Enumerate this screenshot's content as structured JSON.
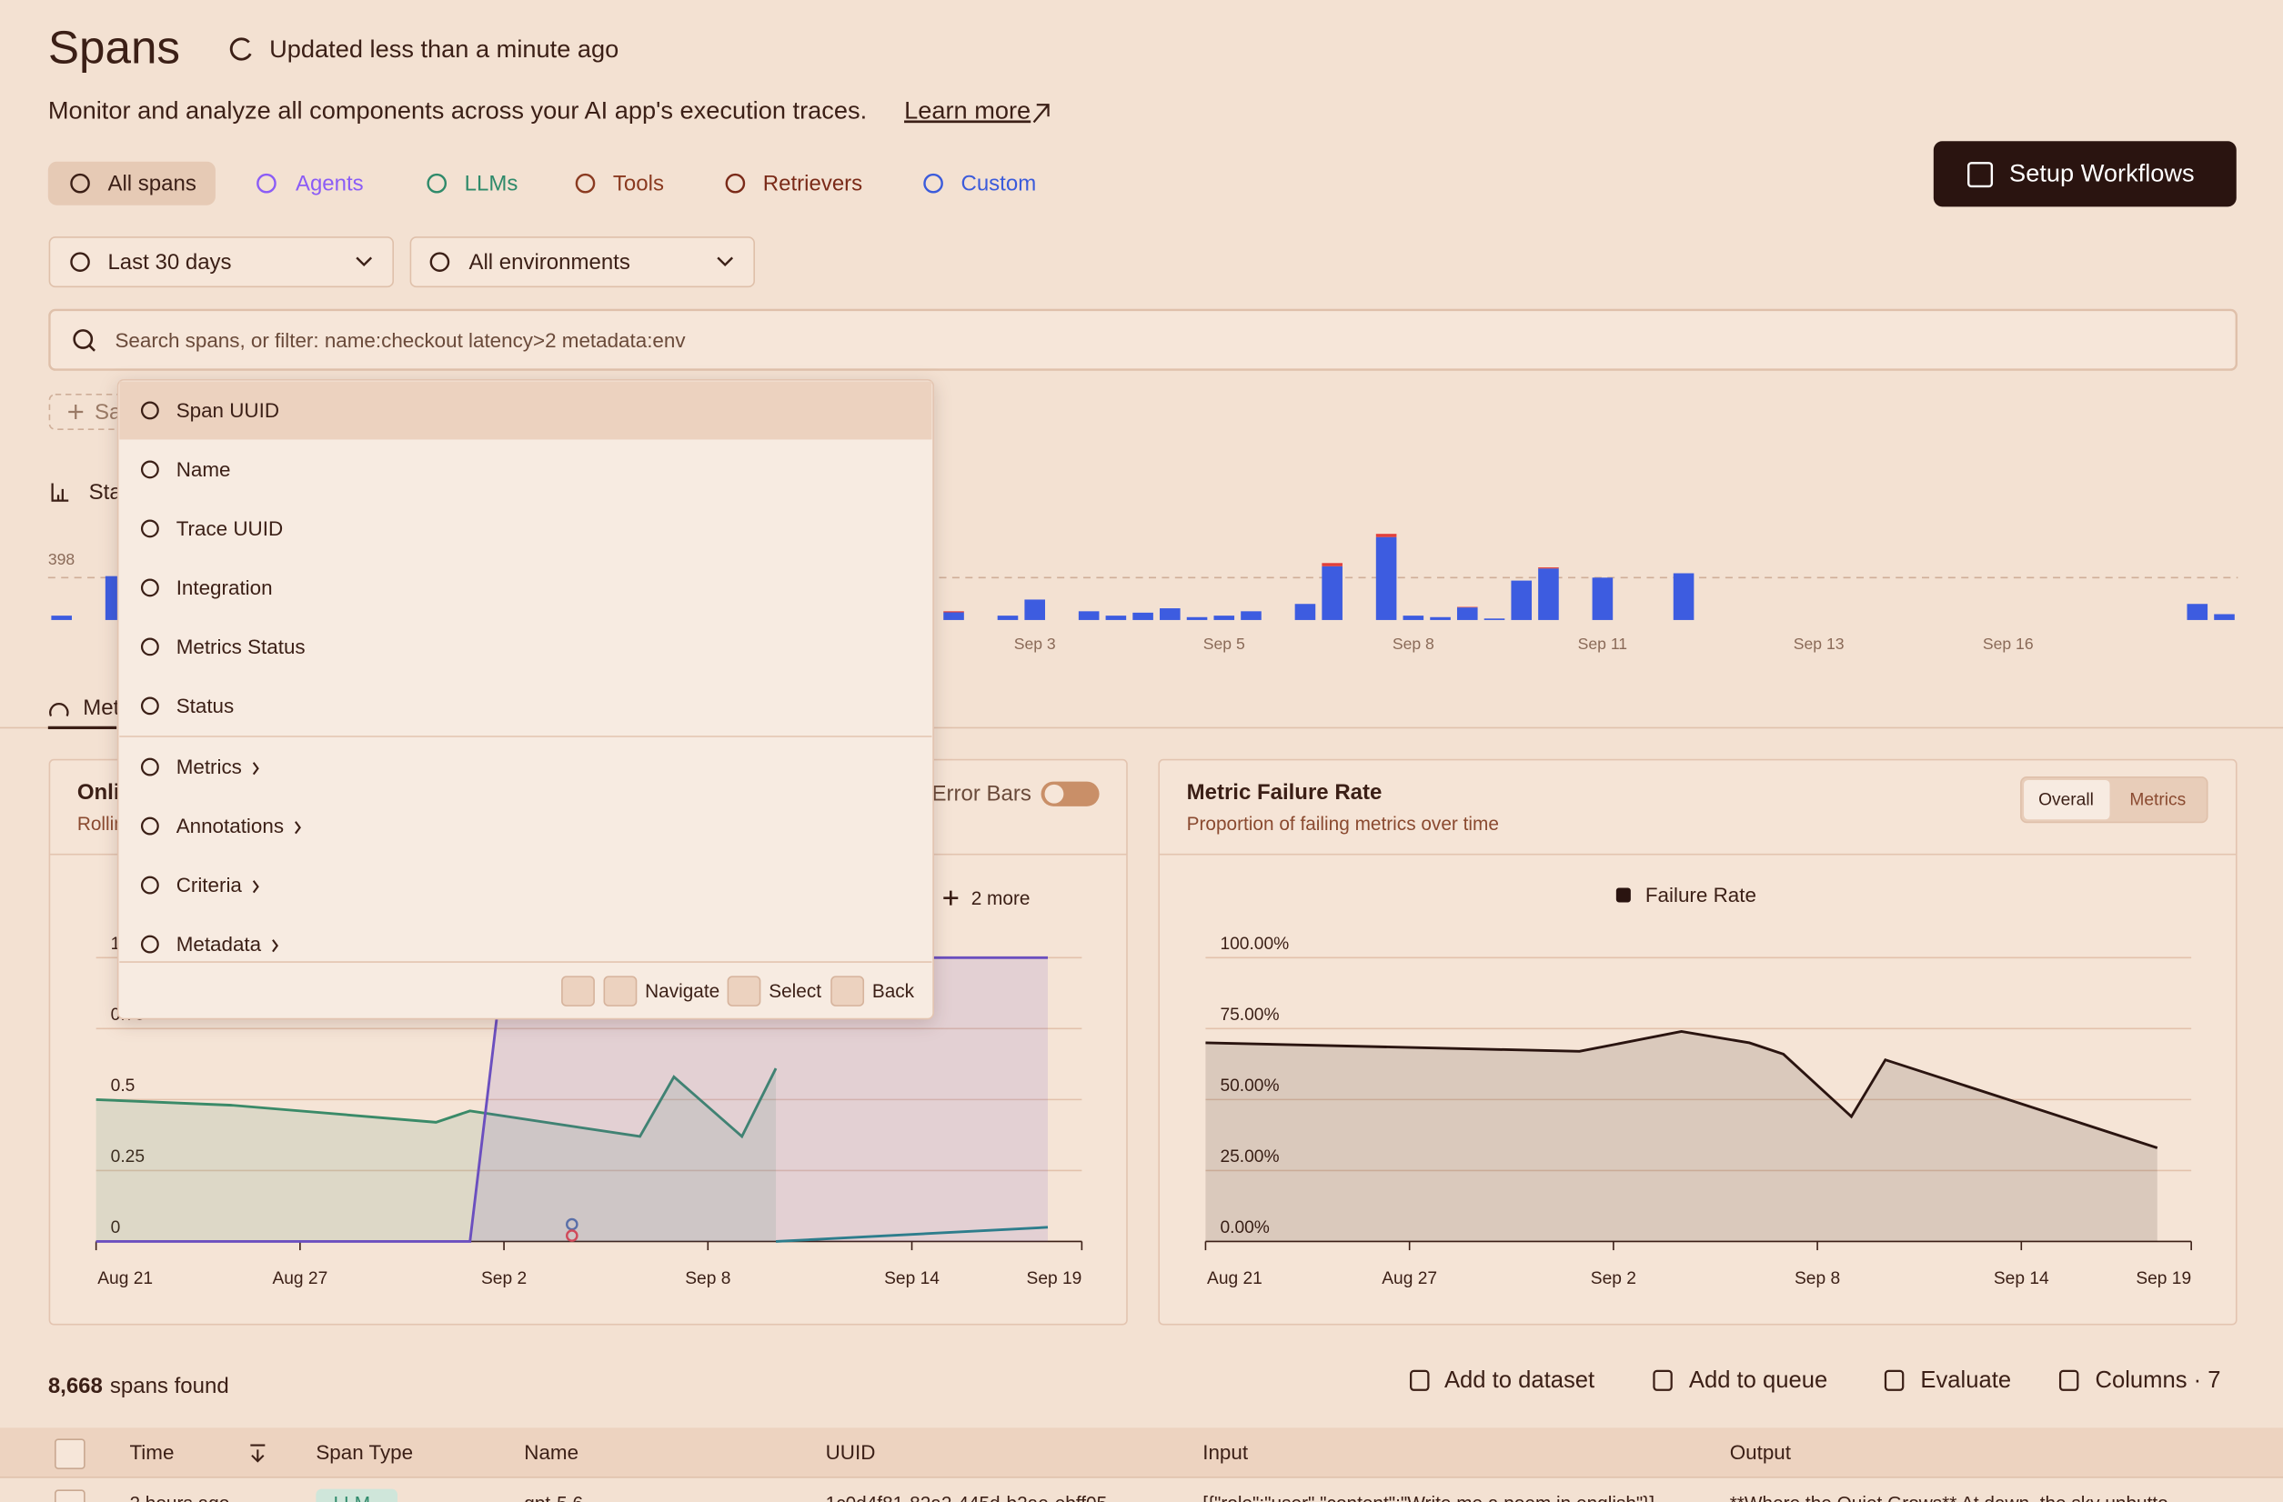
{
  "header": {
    "title": "Spans",
    "updated": "Updated less than a minute ago",
    "description": "Monitor and analyze all components across your AI app's execution traces.",
    "learn_more": "Learn more",
    "setup_button": "Setup Workflows"
  },
  "tabs": [
    "All spans",
    "Agents",
    "LLMs",
    "Tools",
    "Retrievers",
    "Custom"
  ],
  "filters": {
    "date_range": "Last 30 days",
    "environment": "All environments",
    "search_placeholder": "Search spans, or filter: name:checkout  latency>2  metadata:env"
  },
  "toolbar_fragments": {
    "save": "Sa",
    "stats": "Sta",
    "metrics_tab": "Met"
  },
  "dropdown": {
    "fields": [
      "Span UUID",
      "Name",
      "Trace UUID",
      "Integration",
      "Metrics Status",
      "Status"
    ],
    "groups": [
      "Metrics",
      "Annotations",
      "Criteria",
      "Metadata"
    ],
    "hints": {
      "navigate": "Navigate",
      "select": "Select",
      "back": "Back"
    }
  },
  "chart_data": [
    {
      "type": "bar",
      "stacked": true,
      "categories": [
        null,
        null,
        null,
        null,
        null,
        null,
        null,
        null,
        null,
        null,
        null,
        null,
        null,
        null,
        null,
        null,
        null,
        null,
        null,
        null,
        null,
        null,
        null,
        null,
        null,
        null,
        null,
        null,
        null,
        null,
        null,
        null,
        null,
        null,
        null,
        null,
        "Sep 3",
        null,
        null,
        null,
        null,
        null,
        null,
        "Sep 5",
        null,
        null,
        null,
        null,
        null,
        null,
        "Sep 8",
        null,
        null,
        null,
        null,
        null,
        null,
        "Sep 11",
        null,
        null,
        null,
        null,
        null,
        null,
        null,
        "Sep 13",
        null,
        null,
        null,
        null,
        null,
        null,
        "Sep 16",
        null,
        null,
        null,
        null,
        null,
        null,
        null,
        null
      ],
      "series": [
        {
          "color": "#3d5ce0",
          "values": [
            41,
            null,
            412,
            null,
            null,
            null,
            null,
            null,
            null,
            null,
            null,
            null,
            null,
            null,
            null,
            null,
            null,
            null,
            null,
            null,
            null,
            null,
            null,
            null,
            null,
            null,
            null,
            null,
            null,
            null,
            null,
            null,
            null,
            72,
            null,
            41,
            192,
            null,
            82,
            41,
            69,
            110,
            27,
            41,
            82,
            null,
            151,
            505,
            null,
            779,
            41,
            27,
            118,
            14,
            370,
            484,
            null,
            398,
            null,
            null,
            439,
            null,
            null,
            null,
            null,
            null,
            null,
            null,
            null,
            null,
            null,
            null,
            null,
            null,
            null,
            null,
            null,
            null,
            null,
            151,
            55
          ]
        },
        {
          "color": "#e0403c",
          "values": [
            null,
            null,
            null,
            null,
            null,
            null,
            null,
            null,
            null,
            null,
            null,
            null,
            null,
            null,
            null,
            null,
            null,
            null,
            null,
            null,
            null,
            null,
            null,
            null,
            null,
            null,
            null,
            null,
            null,
            null,
            null,
            null,
            null,
            10,
            null,
            null,
            null,
            null,
            null,
            null,
            null,
            null,
            null,
            null,
            null,
            null,
            null,
            30,
            null,
            30,
            null,
            null,
            5,
            null,
            null,
            10,
            null,
            null,
            null,
            null,
            null,
            null,
            null,
            null,
            null,
            null,
            null,
            null,
            null,
            null,
            null,
            null,
            null,
            null,
            null,
            null,
            null,
            null,
            null,
            null,
            null
          ]
        }
      ],
      "ylim": [
        0,
        820
      ],
      "yticks": [
        398
      ]
    },
    {
      "type": "line",
      "title": "Onli",
      "subtitle": "Rollin",
      "toggle_label": "Error Bars",
      "more": "2 more",
      "xlim": [
        0,
        29
      ],
      "xticks": [
        {
          "value": 0,
          "label": "Aug 21"
        },
        {
          "value": 6,
          "label": "Aug 27"
        },
        {
          "value": 12,
          "label": "Sep 2"
        },
        {
          "value": 18,
          "label": "Sep 8"
        },
        {
          "value": 24,
          "label": "Sep 14"
        },
        {
          "value": 29,
          "label": "Sep 19"
        }
      ],
      "ylim": [
        0,
        1
      ],
      "yticks": [
        0,
        0.25,
        0.5,
        0.75,
        1
      ],
      "grid": true,
      "series": [
        {
          "color": "#3a8a68",
          "area": true,
          "x": [
            0,
            4,
            10,
            11,
            16,
            17,
            19,
            20
          ],
          "values": [
            0.5,
            0.48,
            0.42,
            0.46,
            0.37,
            0.58,
            0.37,
            0.61
          ]
        },
        {
          "color": "#6b4fbf",
          "area": true,
          "x": [
            0,
            11,
            12,
            28
          ],
          "values": [
            0,
            0,
            1,
            1
          ]
        },
        {
          "color": "#2d7d8c",
          "x": [
            20,
            28
          ],
          "values": [
            0,
            0.05
          ]
        },
        {
          "color": "#5a6fa8",
          "marker": true,
          "x": [
            14
          ],
          "values": [
            0.04
          ]
        },
        {
          "color": "#d04a5a",
          "marker": true,
          "x": [
            14
          ],
          "values": [
            0
          ]
        }
      ]
    },
    {
      "type": "line",
      "title": "Metric Failure Rate",
      "subtitle": "Proportion of failing metrics over time",
      "toggle": [
        "Overall",
        "Metrics"
      ],
      "xlim": [
        0,
        29
      ],
      "xticks": [
        {
          "value": 0,
          "label": "Aug 21"
        },
        {
          "value": 6,
          "label": "Aug 27"
        },
        {
          "value": 12,
          "label": "Sep 2"
        },
        {
          "value": 18,
          "label": "Sep 8"
        },
        {
          "value": 24,
          "label": "Sep 14"
        },
        {
          "value": 29,
          "label": "Sep 19"
        }
      ],
      "ylim": [
        0,
        100
      ],
      "yticks": [
        {
          "value": 0,
          "label": "0.00%"
        },
        {
          "value": 25,
          "label": "25.00%"
        },
        {
          "value": 50,
          "label": "50.00%"
        },
        {
          "value": 75,
          "label": "75.00%"
        },
        {
          "value": 100,
          "label": "100.00%"
        }
      ],
      "grid": true,
      "series": [
        {
          "name": "Failure Rate",
          "color": "#2a1410",
          "area": true,
          "x": [
            0,
            11,
            14,
            16,
            17,
            19,
            20,
            28
          ],
          "values": [
            70,
            67,
            74,
            70,
            66,
            44,
            64,
            33
          ]
        }
      ]
    }
  ],
  "results": {
    "count": "8,668",
    "count_suffix": "spans found",
    "actions": [
      "Add to dataset",
      "Add to queue",
      "Evaluate",
      "Columns · 7"
    ]
  },
  "table": {
    "columns": [
      "Time",
      "Span Type",
      "Name",
      "UUID",
      "Input",
      "Output"
    ],
    "rows": [
      [
        "2 hours ago",
        "LLM",
        "gpt-5.6",
        "1c0d4f81-82a2-445d-b2ae-ebff05",
        "[{\"role\":\"user\",\"content\":\"Write me a poem in english\"}]",
        "**Where the Quiet Grows** At dawn, the sky unbutto"
      ]
    ]
  }
}
